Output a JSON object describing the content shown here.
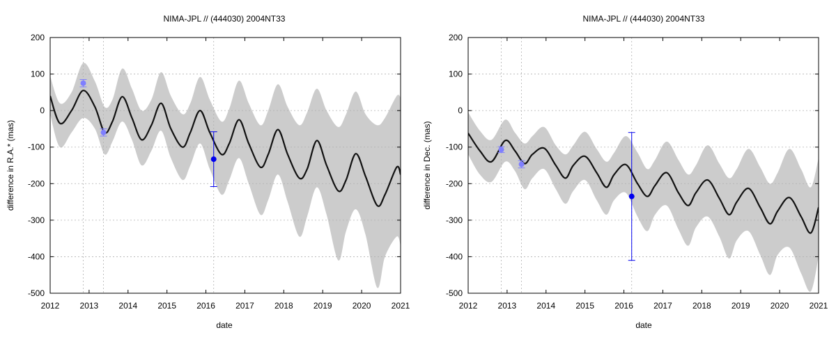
{
  "colors": {
    "band": "#cccccc",
    "model_line": "#111111",
    "obs_light": "#7f7fff",
    "obs_dark": "#0000ee",
    "grid": "#b0b0b0"
  },
  "chart_data": [
    {
      "type": "line",
      "title": "NIMA-JPL // (444030) 2004NT33",
      "xlabel": "date",
      "ylabel": "difference in R.A.* (mas)",
      "xlim": [
        2012,
        2021
      ],
      "ylim": [
        -500,
        200
      ],
      "x_ticks": [
        2012,
        2013,
        2014,
        2015,
        2016,
        2017,
        2018,
        2019,
        2020,
        2021
      ],
      "x_tick_labels": [
        "2012",
        "2013",
        "2014",
        "2015",
        "2016",
        "2017",
        "2018",
        "2019",
        "2020",
        "2021"
      ],
      "y_ticks": [
        -500,
        -400,
        -300,
        -200,
        -100,
        0,
        100,
        200
      ],
      "y_tick_labels": [
        "-500",
        "-400",
        "-300",
        "-200",
        "-100",
        "0",
        "100",
        "200"
      ],
      "grid": true,
      "vertical_markers": [
        2012.85,
        2013.37,
        2016.2
      ],
      "series": [
        {
          "kind": "model",
          "x": [
            2012.0,
            2012.25,
            2012.55,
            2012.85,
            2013.15,
            2013.4,
            2013.6,
            2013.85,
            2014.1,
            2014.35,
            2014.6,
            2014.85,
            2015.1,
            2015.4,
            2015.6,
            2015.85,
            2016.1,
            2016.4,
            2016.6,
            2016.85,
            2017.1,
            2017.4,
            2017.6,
            2017.85,
            2018.1,
            2018.4,
            2018.6,
            2018.85,
            2019.1,
            2019.4,
            2019.6,
            2019.85,
            2020.1,
            2020.4,
            2020.6,
            2020.9,
            2021.0
          ],
          "y": [
            40,
            -35,
            0,
            55,
            10,
            -60,
            -30,
            38,
            -20,
            -80,
            -40,
            20,
            -50,
            -100,
            -60,
            0,
            -60,
            -120,
            -90,
            -25,
            -90,
            -155,
            -120,
            -52,
            -120,
            -185,
            -160,
            -82,
            -150,
            -220,
            -190,
            -118,
            -180,
            -260,
            -230,
            -155,
            -175
          ]
        },
        {
          "kind": "band_upper",
          "x": [
            2012.0,
            2012.25,
            2012.55,
            2012.85,
            2013.15,
            2013.4,
            2013.6,
            2013.85,
            2014.1,
            2014.35,
            2014.6,
            2014.85,
            2015.1,
            2015.4,
            2015.6,
            2015.85,
            2016.1,
            2016.4,
            2016.6,
            2016.85,
            2017.1,
            2017.4,
            2017.6,
            2017.85,
            2018.1,
            2018.4,
            2018.6,
            2018.85,
            2019.1,
            2019.4,
            2019.6,
            2019.85,
            2020.1,
            2020.4,
            2020.6,
            2020.9,
            2021.0
          ],
          "y": [
            95,
            20,
            50,
            130,
            80,
            10,
            30,
            115,
            60,
            0,
            30,
            105,
            40,
            -10,
            20,
            92,
            30,
            -30,
            5,
            82,
            20,
            -40,
            0,
            72,
            10,
            -40,
            -5,
            60,
            0,
            -45,
            -10,
            52,
            -10,
            -40,
            -20,
            40,
            35
          ]
        },
        {
          "kind": "band_lower",
          "x": [
            2012.0,
            2012.25,
            2012.55,
            2012.85,
            2013.15,
            2013.4,
            2013.6,
            2013.85,
            2014.1,
            2014.35,
            2014.6,
            2014.85,
            2015.1,
            2015.4,
            2015.6,
            2015.85,
            2016.1,
            2016.4,
            2016.6,
            2016.85,
            2017.1,
            2017.4,
            2017.6,
            2017.85,
            2018.1,
            2018.4,
            2018.6,
            2018.85,
            2019.1,
            2019.4,
            2019.6,
            2019.85,
            2020.1,
            2020.4,
            2020.6,
            2020.9,
            2021.0
          ],
          "y": [
            -10,
            -100,
            -60,
            -20,
            -50,
            -120,
            -85,
            -30,
            -80,
            -150,
            -110,
            -55,
            -130,
            -190,
            -150,
            -90,
            -160,
            -230,
            -190,
            -130,
            -200,
            -285,
            -245,
            -175,
            -250,
            -345,
            -290,
            -210,
            -285,
            -410,
            -330,
            -270,
            -340,
            -485,
            -400,
            -345,
            -370
          ]
        },
        {
          "kind": "observations",
          "points": [
            {
              "x": 2012.85,
              "y": 75,
              "err": 10,
              "tone": "light"
            },
            {
              "x": 2013.37,
              "y": -60,
              "err": 10,
              "tone": "light"
            },
            {
              "x": 2016.2,
              "y": -133,
              "err": 75,
              "tone": "dark"
            }
          ]
        }
      ]
    },
    {
      "type": "line",
      "title": "NIMA-JPL // (444030) 2004NT33",
      "xlabel": "date",
      "ylabel": "difference in Dec. (mas)",
      "xlim": [
        2012,
        2021
      ],
      "ylim": [
        -500,
        200
      ],
      "x_ticks": [
        2012,
        2013,
        2014,
        2015,
        2016,
        2017,
        2018,
        2019,
        2020,
        2021
      ],
      "x_tick_labels": [
        "2012",
        "2013",
        "2014",
        "2015",
        "2016",
        "2017",
        "2018",
        "2019",
        "2020",
        "2021"
      ],
      "y_ticks": [
        -500,
        -400,
        -300,
        -200,
        -100,
        0,
        100,
        200
      ],
      "y_tick_labels": [
        "-500",
        "-400",
        "-300",
        "-200",
        "-100",
        "0",
        "100",
        "200"
      ],
      "grid": true,
      "vertical_markers": [
        2012.85,
        2013.37,
        2016.2
      ],
      "series": [
        {
          "kind": "model",
          "x": [
            2012.0,
            2012.3,
            2012.6,
            2012.95,
            2013.2,
            2013.45,
            2013.65,
            2013.95,
            2014.25,
            2014.5,
            2014.7,
            2015.0,
            2015.3,
            2015.55,
            2015.75,
            2016.05,
            2016.35,
            2016.6,
            2016.8,
            2017.1,
            2017.4,
            2017.65,
            2017.85,
            2018.15,
            2018.45,
            2018.7,
            2018.9,
            2019.2,
            2019.5,
            2019.75,
            2019.95,
            2020.25,
            2020.55,
            2020.8,
            2021.0
          ],
          "y": [
            -62,
            -110,
            -140,
            -82,
            -110,
            -145,
            -120,
            -103,
            -150,
            -185,
            -150,
            -125,
            -170,
            -210,
            -175,
            -148,
            -200,
            -235,
            -205,
            -170,
            -225,
            -260,
            -225,
            -190,
            -240,
            -285,
            -250,
            -213,
            -265,
            -310,
            -275,
            -238,
            -290,
            -335,
            -265
          ]
        },
        {
          "kind": "band_upper",
          "x": [
            2012.0,
            2012.3,
            2012.6,
            2012.95,
            2013.2,
            2013.45,
            2013.65,
            2013.95,
            2014.25,
            2014.5,
            2014.7,
            2015.0,
            2015.3,
            2015.55,
            2015.75,
            2016.05,
            2016.35,
            2016.6,
            2016.8,
            2017.1,
            2017.4,
            2017.65,
            2017.85,
            2018.15,
            2018.45,
            2018.7,
            2018.9,
            2019.2,
            2019.5,
            2019.75,
            2019.95,
            2020.25,
            2020.55,
            2020.8,
            2021.0
          ],
          "y": [
            -5,
            -55,
            -80,
            -25,
            -60,
            -90,
            -70,
            -45,
            -95,
            -120,
            -95,
            -58,
            -105,
            -140,
            -115,
            -70,
            -115,
            -160,
            -135,
            -85,
            -135,
            -175,
            -150,
            -95,
            -145,
            -185,
            -160,
            -105,
            -155,
            -200,
            -170,
            -105,
            -160,
            -210,
            -130
          ]
        },
        {
          "kind": "band_lower",
          "x": [
            2012.0,
            2012.3,
            2012.6,
            2012.95,
            2013.2,
            2013.45,
            2013.65,
            2013.95,
            2014.25,
            2014.5,
            2014.7,
            2015.0,
            2015.3,
            2015.55,
            2015.75,
            2016.05,
            2016.35,
            2016.6,
            2016.8,
            2017.1,
            2017.4,
            2017.65,
            2017.85,
            2018.15,
            2018.45,
            2018.7,
            2018.9,
            2019.2,
            2019.5,
            2019.75,
            2019.95,
            2020.25,
            2020.55,
            2020.8,
            2021.0
          ],
          "y": [
            -120,
            -175,
            -195,
            -140,
            -165,
            -215,
            -185,
            -160,
            -215,
            -255,
            -220,
            -190,
            -245,
            -285,
            -245,
            -225,
            -290,
            -330,
            -285,
            -260,
            -325,
            -370,
            -320,
            -290,
            -345,
            -405,
            -355,
            -330,
            -395,
            -450,
            -395,
            -375,
            -445,
            -495,
            -400
          ]
        },
        {
          "kind": "observations",
          "points": [
            {
              "x": 2012.85,
              "y": -107,
              "err": 8,
              "tone": "light"
            },
            {
              "x": 2013.37,
              "y": -147,
              "err": 10,
              "tone": "light"
            },
            {
              "x": 2016.2,
              "y": -235,
              "err": 175,
              "tone": "dark"
            }
          ]
        }
      ]
    }
  ]
}
